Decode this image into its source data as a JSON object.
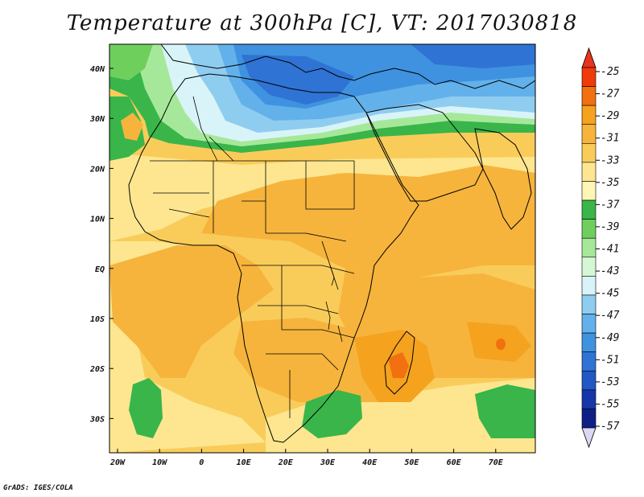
{
  "title": "Temperature at 300hPa [C], VT: 2017030818",
  "credit": "GrADS: IGES/COLA",
  "map": {
    "region": "Africa, Middle East and western Indian Ocean",
    "lat_ticks": [
      "40N",
      "30N",
      "20N",
      "10N",
      "EQ",
      "10S",
      "20S",
      "30S"
    ],
    "lon_ticks": [
      "20W",
      "10W",
      "0",
      "10E",
      "20E",
      "30E",
      "40E",
      "50E",
      "60E",
      "70E"
    ]
  },
  "colorbar": {
    "levels": [
      "-25",
      "-27",
      "-29",
      "-31",
      "-33",
      "-35",
      "-37",
      "-39",
      "-41",
      "-43",
      "-45",
      "-47",
      "-49",
      "-51",
      "-53",
      "-55",
      "-57"
    ],
    "colors": [
      "#f03a0a",
      "#f2700f",
      "#f5a21e",
      "#f6b43c",
      "#f9cc5a",
      "#fde68f",
      "#fdf6b4",
      "#39b54a",
      "#6fcf5d",
      "#a6e89a",
      "#d6f7d6",
      "#d9f4f8",
      "#8fcdf0",
      "#62b1ea",
      "#3f92df",
      "#2f73d4",
      "#2258c4",
      "#1736a8",
      "#0f1f85"
    ],
    "top_arrow_color": "#e8341c",
    "bottom_arrow_color": "#dcd8f4"
  }
}
